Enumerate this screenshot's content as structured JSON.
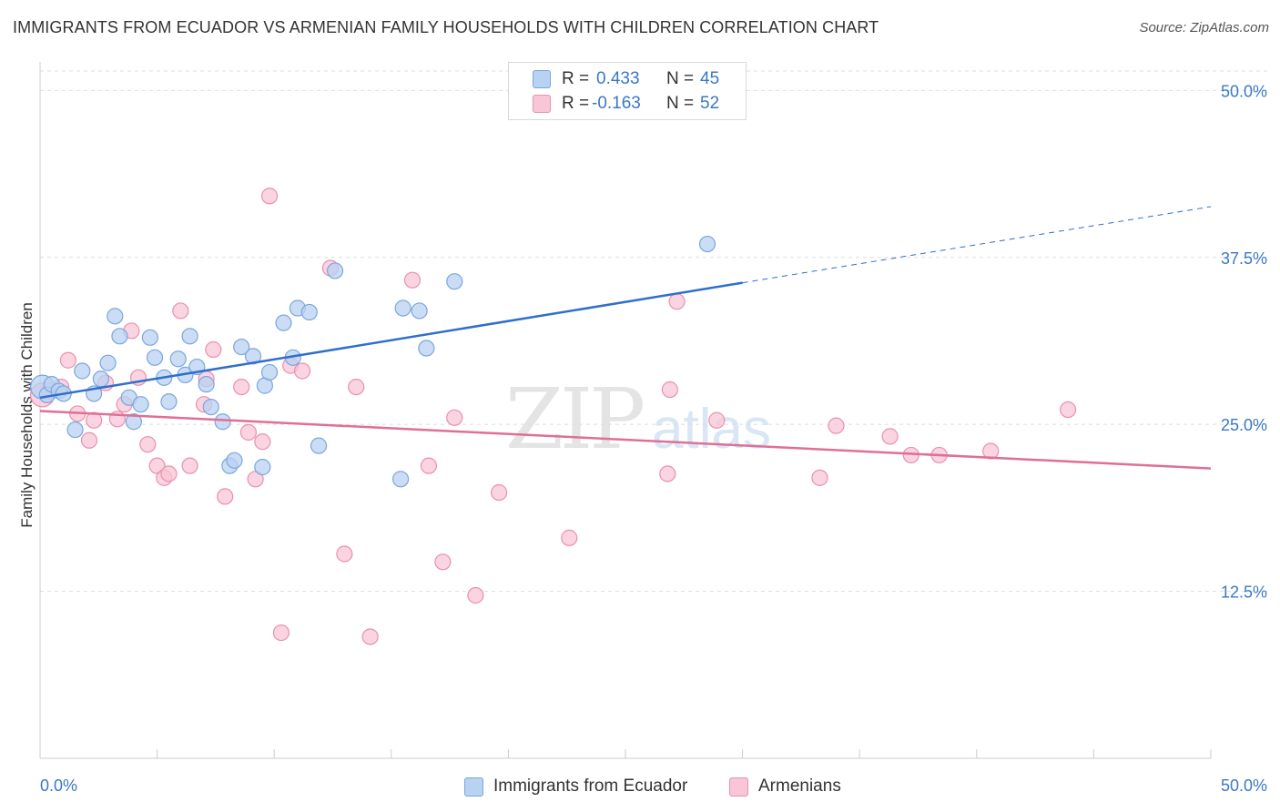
{
  "title": "IMMIGRANTS FROM ECUADOR VS ARMENIAN FAMILY HOUSEHOLDS WITH CHILDREN CORRELATION CHART",
  "source": "Source: ZipAtlas.com",
  "watermark": {
    "zip": "ZIP",
    "atlas": "atlas"
  },
  "legend": {
    "rows": [
      {
        "r_label": "R =",
        "r_value": "0.433",
        "n_label": "N =",
        "n_value": "45"
      },
      {
        "r_label": "R =",
        "r_value": "-0.163",
        "n_label": "N =",
        "n_value": "52"
      }
    ]
  },
  "bottom_legend": [
    "Immigrants from Ecuador",
    "Armenians"
  ],
  "colors": {
    "blue_fill": "#b8d2f2",
    "blue_stroke": "#7aa6de",
    "blue_line": "#2f6fcb",
    "pink_fill": "#f8c6d6",
    "pink_stroke": "#e991ad",
    "pink_line": "#e06f95",
    "tick_label": "#3a78c4",
    "grid": "#dddddd"
  },
  "chart_data": {
    "type": "scatter",
    "title": "IMMIGRANTS FROM ECUADOR VS ARMENIAN FAMILY HOUSEHOLDS WITH CHILDREN CORRELATION CHART",
    "xlabel": "",
    "ylabel": "Family Households with Children",
    "xlim": [
      0,
      50
    ],
    "ylim": [
      0,
      52
    ],
    "x_tick_labels": [
      "0.0%",
      "50.0%"
    ],
    "y_ticks": [
      12.5,
      25.0,
      37.5,
      50.0
    ],
    "y_tick_labels": [
      "12.5%",
      "25.0%",
      "37.5%",
      "50.0%"
    ],
    "grid": "horizontal dashed",
    "legend_position": "top-center",
    "series": [
      {
        "name": "Immigrants from Ecuador",
        "color": "#b8d2f2",
        "points": [
          [
            0.1,
            27.8
          ],
          [
            0.3,
            27.2
          ],
          [
            0.5,
            28.0
          ],
          [
            0.8,
            27.5
          ],
          [
            1.0,
            27.3
          ],
          [
            1.5,
            24.6
          ],
          [
            1.8,
            29.0
          ],
          [
            2.3,
            27.3
          ],
          [
            2.6,
            28.4
          ],
          [
            2.9,
            29.6
          ],
          [
            3.2,
            33.1
          ],
          [
            3.4,
            31.6
          ],
          [
            3.8,
            27.0
          ],
          [
            4.0,
            25.2
          ],
          [
            4.3,
            26.5
          ],
          [
            4.7,
            31.5
          ],
          [
            4.9,
            30.0
          ],
          [
            5.3,
            28.5
          ],
          [
            5.5,
            26.7
          ],
          [
            5.9,
            29.9
          ],
          [
            6.2,
            28.7
          ],
          [
            6.4,
            31.6
          ],
          [
            6.7,
            29.3
          ],
          [
            7.1,
            28.0
          ],
          [
            7.3,
            26.3
          ],
          [
            7.8,
            25.2
          ],
          [
            8.1,
            21.9
          ],
          [
            8.3,
            22.3
          ],
          [
            8.6,
            30.8
          ],
          [
            9.1,
            30.1
          ],
          [
            9.5,
            21.8
          ],
          [
            9.6,
            27.9
          ],
          [
            9.8,
            28.9
          ],
          [
            10.4,
            32.6
          ],
          [
            10.8,
            30.0
          ],
          [
            11.0,
            33.7
          ],
          [
            11.5,
            33.4
          ],
          [
            11.9,
            23.4
          ],
          [
            12.6,
            36.5
          ],
          [
            15.4,
            20.9
          ],
          [
            15.5,
            33.7
          ],
          [
            16.2,
            33.5
          ],
          [
            16.5,
            30.7
          ],
          [
            17.7,
            35.7
          ],
          [
            28.5,
            38.5
          ]
        ]
      },
      {
        "name": "Armenians",
        "color": "#f8c6d6",
        "points": [
          [
            0.1,
            27.2
          ],
          [
            0.4,
            27.5
          ],
          [
            0.9,
            27.8
          ],
          [
            1.2,
            29.8
          ],
          [
            1.6,
            25.8
          ],
          [
            2.1,
            23.8
          ],
          [
            2.3,
            25.3
          ],
          [
            2.8,
            28.1
          ],
          [
            3.3,
            25.4
          ],
          [
            3.6,
            26.5
          ],
          [
            3.9,
            32.0
          ],
          [
            4.2,
            28.5
          ],
          [
            4.6,
            23.5
          ],
          [
            5.0,
            21.9
          ],
          [
            5.3,
            21.0
          ],
          [
            5.5,
            21.3
          ],
          [
            6.0,
            33.5
          ],
          [
            6.4,
            21.9
          ],
          [
            7.1,
            28.4
          ],
          [
            7.0,
            26.5
          ],
          [
            7.4,
            30.6
          ],
          [
            7.9,
            19.6
          ],
          [
            8.6,
            27.8
          ],
          [
            8.9,
            24.4
          ],
          [
            9.2,
            20.9
          ],
          [
            9.5,
            23.7
          ],
          [
            9.8,
            42.1
          ],
          [
            10.3,
            9.4
          ],
          [
            10.7,
            29.4
          ],
          [
            11.2,
            29.0
          ],
          [
            12.4,
            36.7
          ],
          [
            13.0,
            15.3
          ],
          [
            13.5,
            27.8
          ],
          [
            14.1,
            9.1
          ],
          [
            15.9,
            35.8
          ],
          [
            16.6,
            21.9
          ],
          [
            17.2,
            14.7
          ],
          [
            17.7,
            25.5
          ],
          [
            18.6,
            12.2
          ],
          [
            19.6,
            19.9
          ],
          [
            22.6,
            16.5
          ],
          [
            26.8,
            21.3
          ],
          [
            26.9,
            27.6
          ],
          [
            27.2,
            34.2
          ],
          [
            28.9,
            25.3
          ],
          [
            33.3,
            21.0
          ],
          [
            34.0,
            24.9
          ],
          [
            36.3,
            24.1
          ],
          [
            37.2,
            22.7
          ],
          [
            38.4,
            22.7
          ],
          [
            40.6,
            23.0
          ],
          [
            43.9,
            26.1
          ]
        ]
      }
    ],
    "trend_lines": [
      {
        "series": "Immigrants from Ecuador",
        "solid_x": [
          0,
          30
        ],
        "y_at_x0": 27.0,
        "y_at_x30": 35.6,
        "dashed_to_x": 50,
        "y_at_x50": 41.3
      },
      {
        "series": "Armenians",
        "x": [
          0,
          50
        ],
        "y": [
          26.0,
          21.7
        ]
      }
    ]
  }
}
